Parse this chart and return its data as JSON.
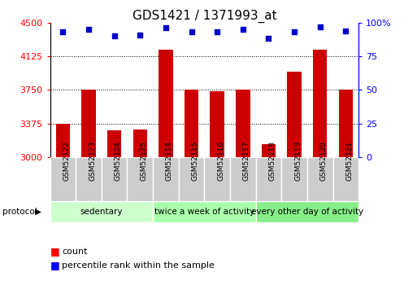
{
  "title": "GDS1421 / 1371993_at",
  "samples": [
    "GSM52122",
    "GSM52123",
    "GSM52124",
    "GSM52125",
    "GSM52114",
    "GSM52115",
    "GSM52116",
    "GSM52117",
    "GSM52118",
    "GSM52119",
    "GSM52120",
    "GSM52121"
  ],
  "count_values": [
    3375,
    3750,
    3300,
    3310,
    4200,
    3750,
    3740,
    3750,
    3150,
    3950,
    4200,
    3750
  ],
  "percentile_values": [
    93,
    95,
    90,
    91,
    96,
    93,
    93,
    95,
    88,
    93,
    97,
    94
  ],
  "groups": [
    {
      "label": "sedentary",
      "start": 0,
      "end": 4
    },
    {
      "label": "twice a week of activity",
      "start": 4,
      "end": 8
    },
    {
      "label": "every other day of activity",
      "start": 8,
      "end": 12
    }
  ],
  "group_colors": [
    "#ccffcc",
    "#aaffaa",
    "#88ee88"
  ],
  "ylim_left": [
    3000,
    4500
  ],
  "ylim_right": [
    0,
    100
  ],
  "yticks_left": [
    3000,
    3375,
    3750,
    4125,
    4500
  ],
  "yticks_right": [
    0,
    25,
    50,
    75,
    100
  ],
  "bar_color": "#cc0000",
  "dot_color": "#0000cc",
  "bar_width": 0.55,
  "plot_bg_color": "#ffffff",
  "grid_color": "#000000",
  "title_fontsize": 11,
  "tick_fontsize": 8,
  "sample_fontsize": 6.5,
  "proto_fontsize": 7.5,
  "legend_fontsize": 8
}
